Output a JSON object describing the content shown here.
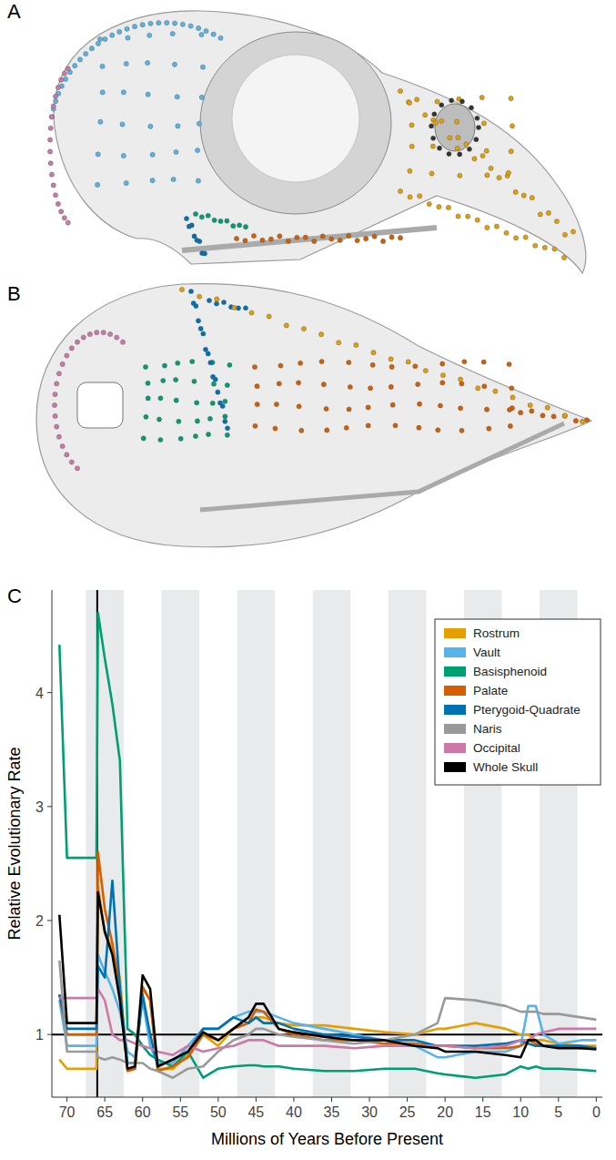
{
  "figure": {
    "panel_labels": [
      "A",
      "B",
      "C"
    ]
  },
  "chart_data": {
    "type": "line",
    "x_label": "Millions of Years Before Present",
    "y_label": "Relative Evolutionary Rate",
    "xlim": [
      72,
      -0.8
    ],
    "ylim": [
      0.45,
      4.9
    ],
    "xticks": [
      70,
      65,
      60,
      55,
      50,
      45,
      40,
      35,
      30,
      25,
      20,
      15,
      10,
      5,
      0
    ],
    "yticks": [
      1,
      2,
      3,
      4
    ],
    "legend": "top-right",
    "grid": false,
    "reference_lines": [
      {
        "axis": "x",
        "value": 66
      },
      {
        "axis": "y",
        "value": 1
      }
    ],
    "x": [
      71,
      70,
      66.1,
      65.9,
      65,
      64,
      63,
      62,
      61,
      60,
      59,
      58,
      56,
      54,
      52,
      50,
      48,
      46,
      45,
      44,
      42,
      40,
      36,
      32,
      28,
      24,
      21,
      20,
      16,
      12,
      10,
      9,
      8,
      7,
      5,
      2,
      0
    ],
    "series": [
      {
        "name": "Rostrum",
        "color": "#E69F00",
        "values": [
          0.78,
          0.7,
          0.7,
          2.3,
          1.9,
          1.75,
          1.5,
          0.68,
          0.7,
          1.4,
          1.3,
          0.7,
          0.7,
          0.82,
          1.0,
          0.9,
          1.05,
          1.1,
          1.15,
          1.15,
          1.1,
          1.08,
          1.08,
          1.05,
          1.02,
          1.0,
          1.05,
          1.05,
          1.1,
          1.05,
          1.0,
          1.0,
          0.95,
          0.95,
          0.92,
          0.9,
          0.9
        ]
      },
      {
        "name": "Vault",
        "color": "#56B4E9",
        "values": [
          1.3,
          0.9,
          0.9,
          1.7,
          1.55,
          1.4,
          1.2,
          0.85,
          0.8,
          1.3,
          0.9,
          0.75,
          0.75,
          0.9,
          1.05,
          1.05,
          1.15,
          1.2,
          1.2,
          1.2,
          1.15,
          1.1,
          1.05,
          1.0,
          0.95,
          0.9,
          0.8,
          0.8,
          0.85,
          0.85,
          0.9,
          1.25,
          1.25,
          1.0,
          0.92,
          0.95,
          0.95
        ]
      },
      {
        "name": "Basisphenoid",
        "color": "#009E73",
        "values": [
          4.42,
          2.55,
          2.55,
          4.7,
          4.3,
          3.9,
          3.4,
          1.05,
          1.0,
          0.9,
          0.82,
          0.78,
          0.72,
          0.85,
          0.62,
          0.7,
          0.72,
          0.73,
          0.73,
          0.72,
          0.72,
          0.7,
          0.68,
          0.68,
          0.7,
          0.7,
          0.66,
          0.65,
          0.62,
          0.65,
          0.72,
          0.7,
          0.72,
          0.7,
          0.7,
          0.69,
          0.68
        ]
      },
      {
        "name": "Palate",
        "color": "#D55E00",
        "values": [
          1.35,
          1.0,
          1.0,
          2.6,
          2.1,
          1.8,
          1.4,
          0.68,
          0.7,
          1.42,
          1.3,
          0.68,
          0.72,
          0.8,
          1.0,
          0.95,
          1.05,
          1.1,
          1.22,
          1.2,
          1.05,
          1.0,
          0.95,
          0.95,
          0.92,
          0.92,
          0.9,
          0.9,
          0.88,
          0.88,
          0.9,
          0.95,
          0.92,
          0.9,
          0.9,
          0.88,
          0.88
        ]
      },
      {
        "name": "Pterygoid-Quadrate",
        "color": "#0072B2",
        "values": [
          1.35,
          1.05,
          1.05,
          1.6,
          1.5,
          2.35,
          1.4,
          0.75,
          0.75,
          1.35,
          1.0,
          0.72,
          0.78,
          0.85,
          1.05,
          1.05,
          1.15,
          1.1,
          1.15,
          1.1,
          1.1,
          1.05,
          1.0,
          0.98,
          0.95,
          0.95,
          0.9,
          0.9,
          0.9,
          0.92,
          0.95,
          0.92,
          0.9,
          0.9,
          0.9,
          0.9,
          0.88
        ]
      },
      {
        "name": "Naris",
        "color": "#999999",
        "values": [
          1.65,
          0.85,
          0.85,
          0.8,
          0.78,
          0.8,
          0.78,
          0.75,
          0.75,
          0.75,
          0.7,
          0.68,
          0.62,
          0.7,
          0.72,
          0.85,
          0.95,
          1.0,
          1.05,
          1.05,
          1.0,
          0.98,
          0.95,
          0.92,
          0.95,
          1.0,
          1.1,
          1.32,
          1.3,
          1.25,
          1.2,
          1.2,
          1.2,
          1.18,
          1.18,
          1.15,
          1.13
        ]
      },
      {
        "name": "Occipital",
        "color": "#CC79A7",
        "values": [
          1.32,
          1.32,
          1.32,
          1.4,
          1.3,
          1.0,
          0.95,
          0.95,
          0.92,
          0.9,
          0.88,
          0.85,
          0.82,
          0.9,
          0.85,
          0.88,
          0.9,
          0.95,
          0.95,
          0.95,
          0.9,
          0.9,
          0.9,
          0.88,
          0.9,
          0.9,
          0.9,
          0.9,
          0.88,
          0.9,
          0.95,
          0.95,
          1.0,
          1.02,
          1.05,
          1.05,
          1.05
        ]
      },
      {
        "name": "Whole Skull",
        "color": "#000000",
        "values": [
          2.05,
          1.1,
          1.1,
          2.25,
          1.9,
          1.7,
          1.3,
          0.7,
          0.72,
          1.52,
          1.4,
          0.72,
          0.78,
          0.85,
          1.02,
          0.95,
          1.05,
          1.15,
          1.27,
          1.27,
          1.05,
          1.02,
          0.98,
          0.95,
          0.95,
          0.9,
          0.88,
          0.85,
          0.85,
          0.82,
          0.8,
          0.95,
          0.95,
          0.9,
          0.88,
          0.88,
          0.87
        ]
      }
    ]
  }
}
